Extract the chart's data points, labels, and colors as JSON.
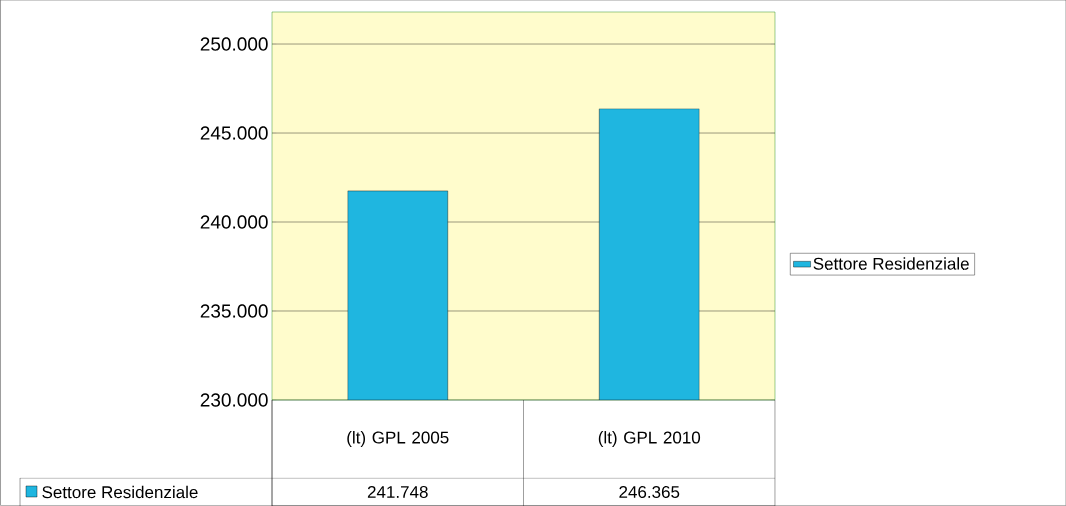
{
  "chart_data": {
    "type": "bar",
    "categories": [
      "(lt) GPL 2005",
      "(lt) GPL 2010"
    ],
    "series": [
      {
        "name": "Settore Residenziale",
        "color": "#1fb6e0",
        "values": [
          241748,
          246365
        ],
        "value_labels": [
          "241.748",
          "246.365"
        ]
      }
    ],
    "ylim": [
      230000,
      251800
    ],
    "yticks": [
      {
        "value": 230000,
        "label": "230.000"
      },
      {
        "value": 235000,
        "label": "235.000"
      },
      {
        "value": 240000,
        "label": "240.000"
      },
      {
        "value": 245000,
        "label": "245.000"
      },
      {
        "value": 250000,
        "label": "250.000"
      }
    ],
    "grid": "y",
    "legend": "right"
  }
}
